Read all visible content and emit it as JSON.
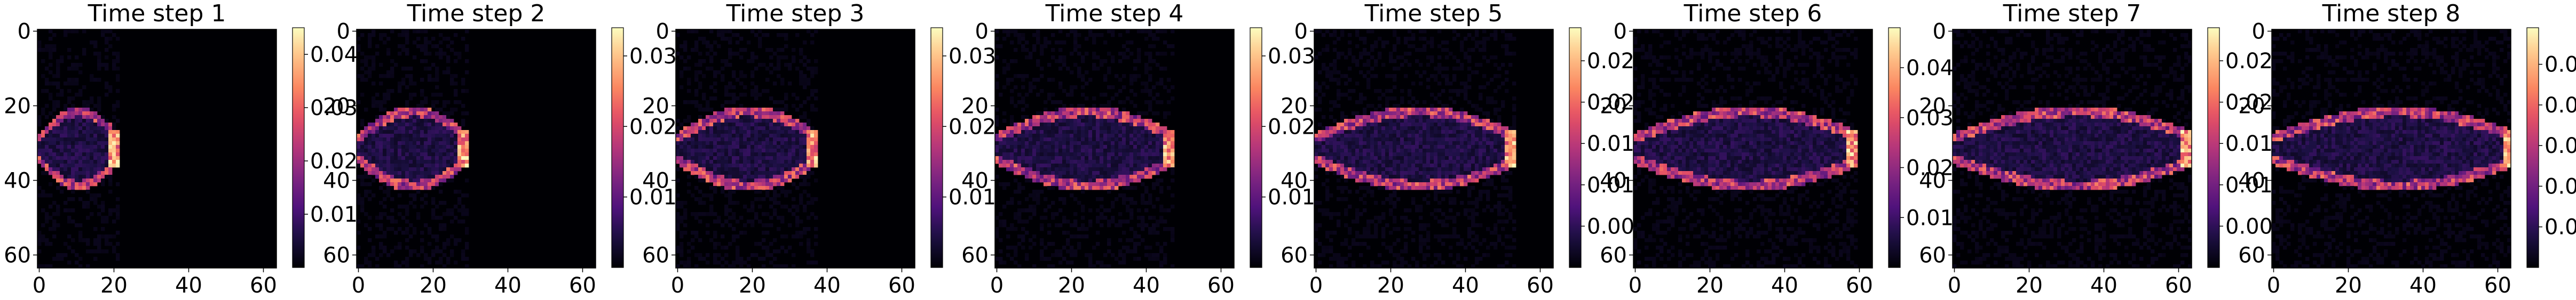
{
  "figure": {
    "panels": [
      {
        "title": "Time step 1",
        "cbar_max": 0.045,
        "colorbar_ticks": [
          "0.01",
          "0.02",
          "0.03",
          "0.04"
        ]
      },
      {
        "title": "Time step 2",
        "cbar_max": 0.034,
        "colorbar_ticks": [
          "0.01",
          "0.02",
          "0.03"
        ]
      },
      {
        "title": "Time step 3",
        "cbar_max": 0.034,
        "colorbar_ticks": [
          "0.01",
          "0.02",
          "0.03"
        ]
      },
      {
        "title": "Time step 4",
        "cbar_max": 0.034,
        "colorbar_ticks": [
          "0.01",
          "0.02",
          "0.03"
        ]
      },
      {
        "title": "Time step 5",
        "cbar_max": 0.029,
        "colorbar_ticks": [
          "0.005",
          "0.010",
          "0.015",
          "0.020",
          "0.025"
        ]
      },
      {
        "title": "Time step 6",
        "cbar_max": 0.048,
        "colorbar_ticks": [
          "0.01",
          "0.02",
          "0.03",
          "0.04"
        ]
      },
      {
        "title": "Time step 7",
        "cbar_max": 0.029,
        "colorbar_ticks": [
          "0.005",
          "0.010",
          "0.015",
          "0.020",
          "0.025"
        ]
      },
      {
        "title": "Time step 8",
        "cbar_max": 0.059,
        "colorbar_ticks": [
          "0.01",
          "0.02",
          "0.03",
          "0.04",
          "0.05"
        ]
      }
    ]
  },
  "chart_data": {
    "type": "heatmap",
    "colormap": "magma",
    "grid_size": 64,
    "x_ticks": [
      "0",
      "20",
      "40",
      "60"
    ],
    "y_ticks": [
      "0",
      "20",
      "40",
      "60"
    ],
    "xlim": [
      0,
      63
    ],
    "ylim": [
      63,
      0
    ],
    "grid": false,
    "series": [
      {
        "name": "Time step 1",
        "front_x": 20,
        "vmax": 0.045
      },
      {
        "name": "Time step 2",
        "front_x": 28,
        "vmax": 0.034
      },
      {
        "name": "Time step 3",
        "front_x": 36,
        "vmax": 0.034
      },
      {
        "name": "Time step 4",
        "front_x": 46,
        "vmax": 0.034
      },
      {
        "name": "Time step 5",
        "front_x": 52,
        "vmax": 0.029
      },
      {
        "name": "Time step 6",
        "front_x": 58,
        "vmax": 0.048
      },
      {
        "name": "Time step 7",
        "front_x": 62,
        "vmax": 0.029
      },
      {
        "name": "Time step 8",
        "front_x": 63,
        "vmax": 0.059
      }
    ]
  }
}
